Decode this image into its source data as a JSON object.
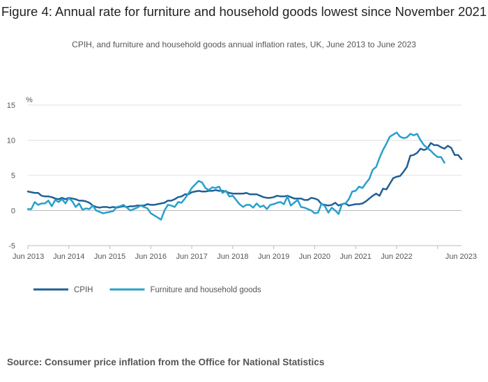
{
  "title": "Figure 4: Annual rate for furniture and household goods lowest since November 2021",
  "subtitle": "CPIH, and furniture and household goods annual inflation rates, UK, June 2013 to June 2023",
  "source": "Source: Consumer price inflation from the Office for National Statistics",
  "colors": {
    "cpih": "#206095",
    "furniture": "#27a0cc",
    "grid": "#e0e0e0",
    "axis": "#bbbbbb",
    "text": "#555555"
  },
  "chart_data": {
    "type": "line",
    "title": "Figure 4: Annual rate for furniture and household goods lowest since November 2021",
    "ylabel": "%",
    "xlabel": "",
    "ylim": [
      -5,
      15
    ],
    "yticks": [
      "15",
      "10",
      "5",
      "0",
      "-5"
    ],
    "ytick_values": [
      15,
      10,
      5,
      0,
      -5
    ],
    "xticks": [
      "Jun 2013",
      "Jun 2014",
      "Jun 2015",
      "Jun 2016",
      "Jun 2017",
      "Jun 2018",
      "Jun 2019",
      "Jun 2020",
      "Jun 2021",
      "Jun 2022",
      "Jun 2023"
    ],
    "x_start": "Jun 2013",
    "x_end": "Jun 2023",
    "legend": "bottom-left",
    "series": [
      {
        "name": "CPIH",
        "key": "cpih",
        "values": [
          2.7,
          2.6,
          2.5,
          2.5,
          2.1,
          2.0,
          2.0,
          1.9,
          1.7,
          1.6,
          1.8,
          1.6,
          1.8,
          1.7,
          1.6,
          1.4,
          1.4,
          1.3,
          1.1,
          0.7,
          0.5,
          0.4,
          0.5,
          0.5,
          0.4,
          0.5,
          0.4,
          0.5,
          0.6,
          0.5,
          0.6,
          0.6,
          0.7,
          0.7,
          0.7,
          0.9,
          0.8,
          0.8,
          0.9,
          1.0,
          1.1,
          1.4,
          1.4,
          1.6,
          1.9,
          2.0,
          2.3,
          2.3,
          2.6,
          2.7,
          2.8,
          2.7,
          2.7,
          2.8,
          2.8,
          2.9,
          2.8,
          2.8,
          2.7,
          2.5,
          2.4,
          2.4,
          2.4,
          2.4,
          2.5,
          2.3,
          2.3,
          2.3,
          2.1,
          1.9,
          1.8,
          1.8,
          1.9,
          2.1,
          2.0,
          2.0,
          2.1,
          1.9,
          1.7,
          1.7,
          1.7,
          1.5,
          1.5,
          1.8,
          1.7,
          1.5,
          0.9,
          0.8,
          0.7,
          0.8,
          1.1,
          0.7,
          0.9,
          1.0,
          0.7,
          0.8,
          0.9,
          0.9,
          1.0,
          1.3,
          1.7,
          2.1,
          2.4,
          2.1,
          3.1,
          3.0,
          3.8,
          4.6,
          4.8,
          4.9,
          5.5,
          6.2,
          7.8,
          7.9,
          8.2,
          8.8,
          8.6,
          8.8,
          9.6,
          9.3,
          9.3,
          9.0,
          8.8,
          9.2,
          8.9,
          7.9,
          7.9,
          7.3
        ]
      },
      {
        "name": "Furniture and household goods",
        "key": "furniture",
        "values": [
          0.2,
          0.2,
          1.2,
          0.8,
          1.0,
          1.0,
          1.4,
          0.6,
          1.5,
          1.2,
          1.6,
          1.0,
          1.8,
          1.3,
          0.5,
          1.0,
          0.1,
          0.3,
          0.2,
          0.7,
          0.0,
          -0.2,
          -0.4,
          -0.3,
          -0.2,
          -0.1,
          0.5,
          0.6,
          0.8,
          0.4,
          0.0,
          0.2,
          0.4,
          0.7,
          0.5,
          0.3,
          -0.4,
          -0.7,
          -1.0,
          -1.3,
          0.0,
          0.8,
          0.7,
          0.5,
          1.2,
          1.1,
          1.7,
          2.4,
          3.2,
          3.7,
          4.2,
          4.0,
          3.2,
          2.9,
          3.3,
          3.2,
          3.4,
          2.5,
          2.8,
          2.0,
          2.1,
          1.5,
          0.9,
          0.5,
          0.8,
          0.8,
          0.4,
          1.0,
          0.5,
          0.7,
          0.2,
          0.8,
          0.9,
          1.1,
          1.2,
          0.9,
          2.0,
          0.7,
          1.1,
          1.5,
          0.5,
          0.4,
          0.2,
          0.0,
          -0.4,
          -0.3,
          1.0,
          0.6,
          -0.3,
          0.4,
          0.0,
          -0.5,
          0.9,
          1.0,
          1.6,
          2.7,
          2.8,
          3.4,
          3.2,
          3.9,
          4.5,
          5.8,
          6.2,
          7.5,
          8.6,
          9.5,
          10.5,
          10.8,
          11.1,
          10.5,
          10.3,
          10.4,
          10.9,
          10.7,
          10.9,
          10.0,
          9.3,
          8.9,
          8.5,
          8.0,
          7.6,
          7.6,
          6.8
        ]
      }
    ]
  }
}
